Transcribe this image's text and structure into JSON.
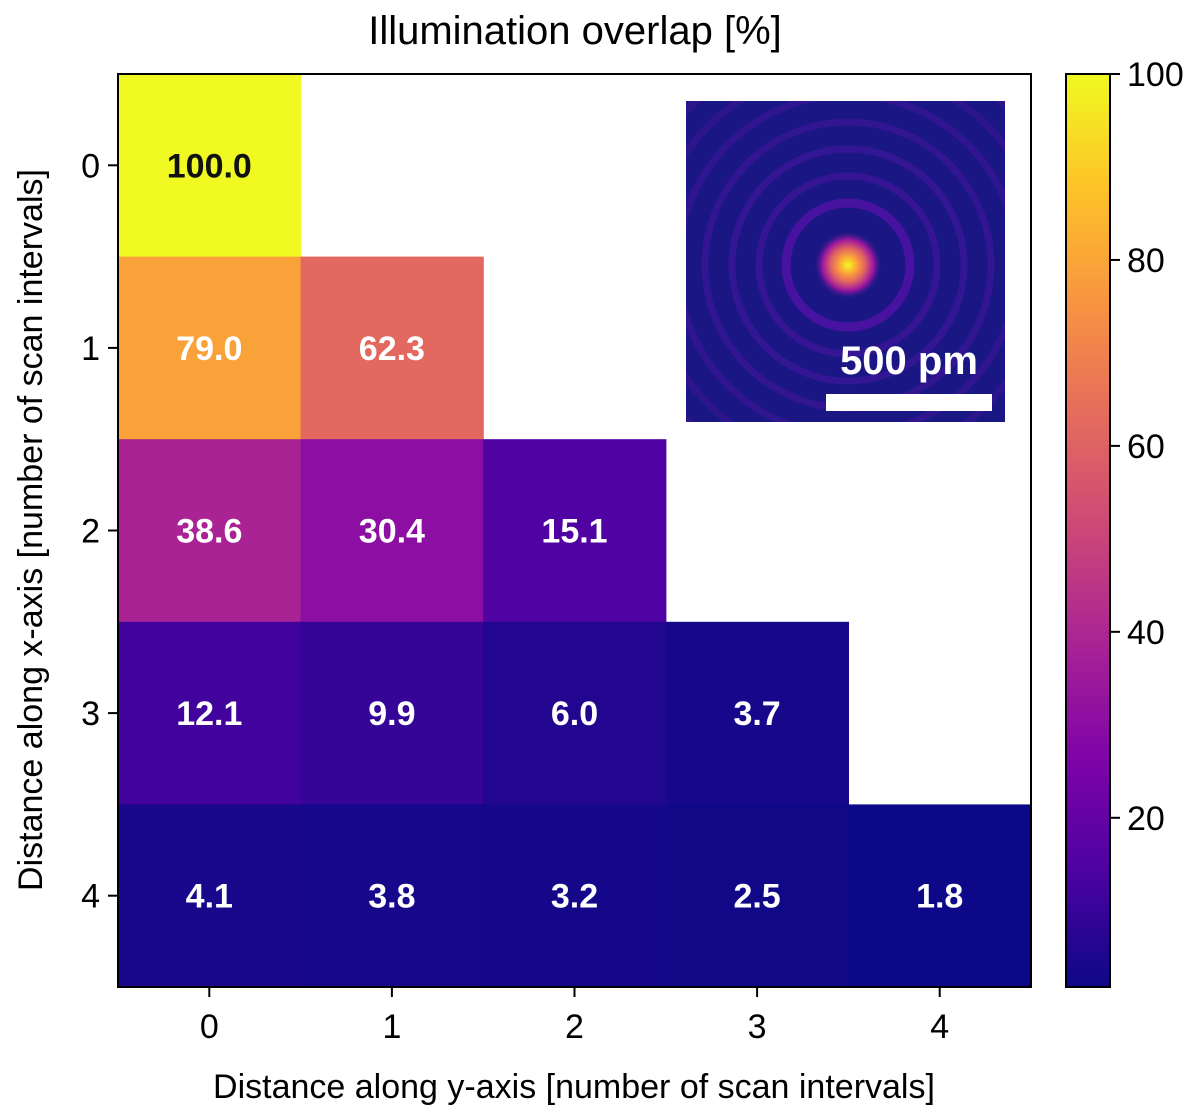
{
  "chart_data": {
    "type": "heatmap",
    "title": "Illumination overlap [%]",
    "xlabel": "Distance along y-axis [number of scan intervals]",
    "ylabel": "Distance along x-axis [number of scan intervals]",
    "x_ticks": [
      "0",
      "1",
      "2",
      "3",
      "4"
    ],
    "y_ticks": [
      "0",
      "1",
      "2",
      "3",
      "4"
    ],
    "colormap": "plasma",
    "colorbar_range": [
      1.8,
      100
    ],
    "colorbar_ticks": [
      "20",
      "40",
      "60",
      "80",
      "100"
    ],
    "values": [
      [
        100.0,
        null,
        null,
        null,
        null
      ],
      [
        79.0,
        62.3,
        null,
        null,
        null
      ],
      [
        38.6,
        30.4,
        15.1,
        null,
        null
      ],
      [
        12.1,
        9.9,
        6.0,
        3.7,
        null
      ],
      [
        4.1,
        3.8,
        3.2,
        2.5,
        1.8
      ]
    ],
    "cell_labels": [
      [
        "100.0",
        "",
        "",
        "",
        ""
      ],
      [
        "79.0",
        "62.3",
        "",
        "",
        ""
      ],
      [
        "38.6",
        "30.4",
        "15.1",
        "",
        ""
      ],
      [
        "12.1",
        "9.9",
        "6.0",
        "3.7",
        ""
      ],
      [
        "4.1",
        "3.8",
        "3.2",
        "2.5",
        "1.8"
      ]
    ],
    "inset": {
      "scale_bar_label": "500 pm",
      "background_color": "#1a1683"
    }
  }
}
